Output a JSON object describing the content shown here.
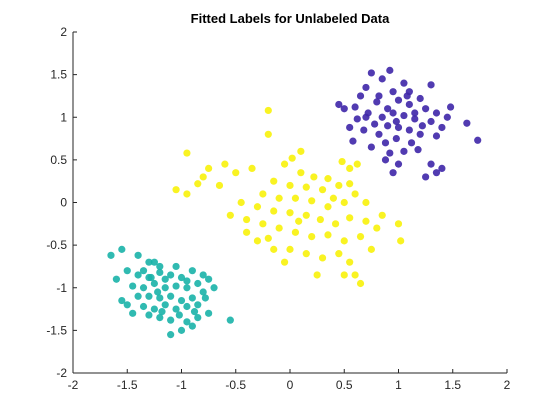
{
  "chart_data": {
    "type": "scatter",
    "title": "Fitted Labels for Unlabeled Data",
    "xlabel": "",
    "ylabel": "",
    "xlim": [
      -2,
      2
    ],
    "ylim": [
      -2,
      2
    ],
    "xticks": [
      -2,
      -1.5,
      -1,
      -0.5,
      0,
      0.5,
      1,
      1.5,
      2
    ],
    "yticks": [
      -2,
      -1.5,
      -1,
      -0.5,
      0,
      0.5,
      1,
      1.5,
      2
    ],
    "xtick_labels": [
      "-2",
      "-1.5",
      "-1",
      "-0.5",
      "0",
      "0.5",
      "1",
      "1.5",
      "2"
    ],
    "ytick_labels": [
      "-2",
      "-1.5",
      "-1",
      "-0.5",
      "0",
      "0.5",
      "1",
      "1.5",
      "2"
    ],
    "grid": false,
    "box": false,
    "marker": "filled-circle",
    "series": [
      {
        "color": "#3e26a8",
        "points": [
          [
            0.75,
            1.52
          ],
          [
            0.85,
            1.45
          ],
          [
            0.92,
            1.55
          ],
          [
            1.05,
            1.4
          ],
          [
            0.7,
            1.35
          ],
          [
            1.1,
            1.3
          ],
          [
            0.65,
            1.25
          ],
          [
            0.95,
            1.3
          ],
          [
            1.2,
            1.22
          ],
          [
            1.3,
            1.38
          ],
          [
            0.6,
            1.12
          ],
          [
            0.8,
            1.18
          ],
          [
            0.9,
            1.1
          ],
          [
            1.0,
            1.2
          ],
          [
            1.1,
            1.15
          ],
          [
            1.25,
            1.1
          ],
          [
            1.35,
            1.05
          ],
          [
            1.45,
            1.0
          ],
          [
            0.5,
            1.1
          ],
          [
            0.72,
            1.05
          ],
          [
            0.85,
            1.0
          ],
          [
            0.95,
            1.05
          ],
          [
            1.05,
            1.02
          ],
          [
            1.15,
            0.98
          ],
          [
            1.3,
            0.95
          ],
          [
            1.4,
            0.88
          ],
          [
            0.62,
            0.98
          ],
          [
            0.78,
            0.92
          ],
          [
            0.9,
            0.9
          ],
          [
            1.0,
            0.88
          ],
          [
            1.1,
            0.85
          ],
          [
            1.2,
            0.8
          ],
          [
            1.35,
            0.78
          ],
          [
            0.68,
            0.85
          ],
          [
            0.82,
            0.8
          ],
          [
            0.98,
            0.75
          ],
          [
            1.12,
            0.7
          ],
          [
            0.58,
            0.72
          ],
          [
            0.75,
            0.65
          ],
          [
            0.92,
            0.58
          ],
          [
            1.05,
            0.6
          ],
          [
            0.88,
            0.5
          ],
          [
            1.0,
            0.45
          ],
          [
            1.3,
            0.45
          ],
          [
            1.35,
            0.35
          ],
          [
            1.25,
            0.3
          ],
          [
            1.63,
            0.93
          ],
          [
            1.73,
            0.73
          ],
          [
            0.45,
            1.15
          ],
          [
            0.82,
            1.25
          ],
          [
            1.15,
            1.05
          ],
          [
            0.98,
            0.95
          ],
          [
            1.22,
            0.9
          ],
          [
            1.48,
            1.12
          ],
          [
            0.7,
            1.0
          ],
          [
            1.08,
            1.25
          ],
          [
            0.55,
            0.88
          ],
          [
            0.88,
            0.7
          ],
          [
            1.18,
            0.62
          ],
          [
            0.95,
            0.35
          ],
          [
            1.4,
            0.4
          ]
        ]
      },
      {
        "color": "#f8f20a",
        "points": [
          [
            -0.2,
            0.8
          ],
          [
            -0.05,
            0.45
          ],
          [
            0.02,
            0.52
          ],
          [
            0.1,
            0.35
          ],
          [
            0.22,
            0.3
          ],
          [
            0.35,
            0.28
          ],
          [
            0.48,
            0.48
          ],
          [
            0.55,
            0.4
          ],
          [
            0.62,
            0.45
          ],
          [
            -0.35,
            0.4
          ],
          [
            -0.5,
            0.35
          ],
          [
            -0.65,
            0.2
          ],
          [
            -0.15,
            0.25
          ],
          [
            0.0,
            0.2
          ],
          [
            0.15,
            0.18
          ],
          [
            0.3,
            0.15
          ],
          [
            0.45,
            0.2
          ],
          [
            0.55,
            0.22
          ],
          [
            -0.25,
            0.1
          ],
          [
            -0.1,
            0.05
          ],
          [
            0.05,
            0.05
          ],
          [
            0.2,
            0.02
          ],
          [
            0.35,
            -0.05
          ],
          [
            0.5,
            0.0
          ],
          [
            0.6,
            0.1
          ],
          [
            0.7,
            0.0
          ],
          [
            -0.45,
            0.0
          ],
          [
            -0.3,
            -0.05
          ],
          [
            -0.15,
            -0.1
          ],
          [
            0.0,
            -0.12
          ],
          [
            0.15,
            -0.15
          ],
          [
            0.28,
            -0.2
          ],
          [
            0.42,
            -0.25
          ],
          [
            0.55,
            -0.18
          ],
          [
            0.7,
            -0.22
          ],
          [
            0.85,
            -0.15
          ],
          [
            -0.55,
            -0.15
          ],
          [
            -0.4,
            -0.2
          ],
          [
            -0.25,
            -0.25
          ],
          [
            -0.1,
            -0.3
          ],
          [
            0.05,
            -0.35
          ],
          [
            0.2,
            -0.4
          ],
          [
            0.35,
            -0.38
          ],
          [
            0.5,
            -0.45
          ],
          [
            0.65,
            -0.4
          ],
          [
            0.8,
            -0.3
          ],
          [
            1.0,
            -0.25
          ],
          [
            1.02,
            -0.45
          ],
          [
            -0.3,
            -0.45
          ],
          [
            -0.15,
            -0.55
          ],
          [
            0.0,
            -0.55
          ],
          [
            0.15,
            -0.6
          ],
          [
            0.3,
            -0.65
          ],
          [
            0.45,
            -0.6
          ],
          [
            0.55,
            -0.7
          ],
          [
            -0.05,
            -0.7
          ],
          [
            0.25,
            -0.85
          ],
          [
            0.5,
            -0.85
          ],
          [
            0.65,
            -0.95
          ],
          [
            -0.95,
            0.58
          ],
          [
            -1.05,
            0.15
          ],
          [
            -0.8,
            0.3
          ],
          [
            -0.6,
            0.45
          ],
          [
            -0.85,
            0.22
          ],
          [
            -0.95,
            0.1
          ],
          [
            -0.75,
            0.4
          ],
          [
            0.1,
            0.6
          ],
          [
            0.4,
            0.05
          ],
          [
            -0.4,
            -0.35
          ],
          [
            -0.2,
            -0.42
          ],
          [
            0.75,
            -0.55
          ],
          [
            0.6,
            -0.85
          ],
          [
            -0.2,
            1.08
          ],
          [
            0.08,
            -0.22
          ]
        ]
      },
      {
        "color": "#1ab3a8",
        "points": [
          [
            -1.65,
            -0.62
          ],
          [
            -1.55,
            -0.55
          ],
          [
            -1.4,
            -0.62
          ],
          [
            -1.3,
            -0.7
          ],
          [
            -1.2,
            -0.75
          ],
          [
            -1.5,
            -0.8
          ],
          [
            -1.4,
            -0.85
          ],
          [
            -1.3,
            -0.88
          ],
          [
            -1.2,
            -0.82
          ],
          [
            -1.1,
            -0.85
          ],
          [
            -1.0,
            -0.88
          ],
          [
            -0.9,
            -0.8
          ],
          [
            -0.8,
            -0.85
          ],
          [
            -1.45,
            -0.98
          ],
          [
            -1.35,
            -1.0
          ],
          [
            -1.25,
            -0.95
          ],
          [
            -1.15,
            -1.0
          ],
          [
            -1.05,
            -0.98
          ],
          [
            -0.95,
            -1.0
          ],
          [
            -0.85,
            -0.95
          ],
          [
            -0.75,
            -0.9
          ],
          [
            -1.4,
            -1.1
          ],
          [
            -1.3,
            -1.1
          ],
          [
            -1.2,
            -1.12
          ],
          [
            -1.1,
            -1.1
          ],
          [
            -1.0,
            -1.15
          ],
          [
            -0.9,
            -1.12
          ],
          [
            -0.8,
            -1.05
          ],
          [
            -0.7,
            -1.0
          ],
          [
            -1.5,
            -1.2
          ],
          [
            -1.35,
            -1.22
          ],
          [
            -1.25,
            -1.25
          ],
          [
            -1.15,
            -1.2
          ],
          [
            -1.05,
            -1.25
          ],
          [
            -0.95,
            -1.22
          ],
          [
            -0.85,
            -1.2
          ],
          [
            -1.45,
            -1.3
          ],
          [
            -1.3,
            -1.32
          ],
          [
            -1.2,
            -1.35
          ],
          [
            -1.1,
            -1.38
          ],
          [
            -0.95,
            -1.4
          ],
          [
            -0.85,
            -1.35
          ],
          [
            -0.75,
            -1.3
          ],
          [
            -1.0,
            -1.5
          ],
          [
            -1.1,
            -1.55
          ],
          [
            -0.9,
            -1.45
          ],
          [
            -0.55,
            -1.38
          ],
          [
            -1.25,
            -0.7
          ],
          [
            -1.15,
            -0.9
          ],
          [
            -1.35,
            -0.8
          ],
          [
            -1.05,
            -0.75
          ],
          [
            -0.95,
            -0.92
          ],
          [
            -1.55,
            -1.15
          ],
          [
            -1.22,
            -1.05
          ],
          [
            -1.18,
            -1.28
          ],
          [
            -0.88,
            -1.28
          ],
          [
            -0.78,
            -1.12
          ],
          [
            -1.6,
            -0.9
          ],
          [
            -1.02,
            -1.32
          ],
          [
            -1.28,
            -0.88
          ]
        ]
      }
    ]
  }
}
